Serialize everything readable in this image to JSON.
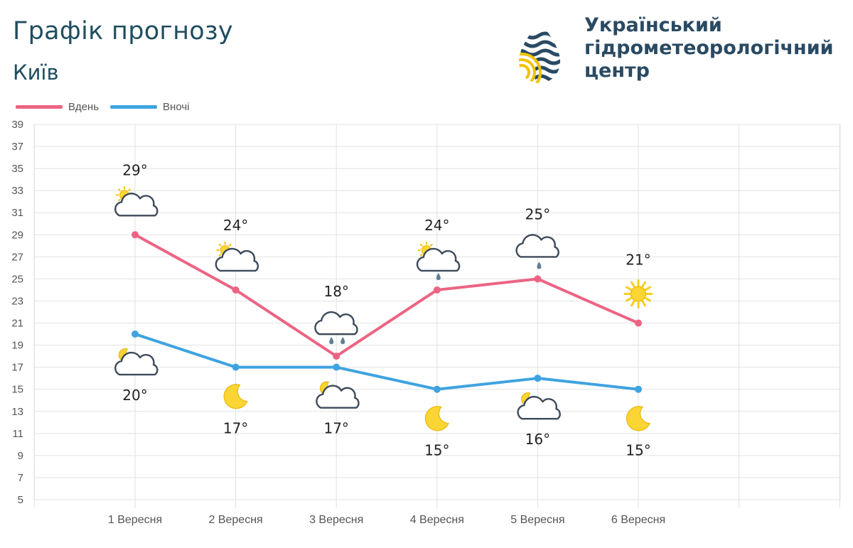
{
  "header": {
    "title": "Графік прогнозу",
    "city": "Київ",
    "org_lines": [
      "Український",
      "гідрометеорологічний",
      "центр"
    ]
  },
  "colors": {
    "day": "#ec6483",
    "night": "#3fa3e0",
    "grid": "#e2e2e2",
    "axis_text": "#555555"
  },
  "chart_data": {
    "type": "line",
    "categories": [
      "1 Вересня",
      "2 Вересня",
      "3 Вересня",
      "4 Вересня",
      "5 Вересня",
      "6 Вересня"
    ],
    "series": [
      {
        "name": "Вдень",
        "values": [
          29,
          24,
          18,
          24,
          25,
          21
        ],
        "labels": [
          "29°",
          "24°",
          "18°",
          "24°",
          "25°",
          "21°"
        ],
        "icons": [
          "partly-cloudy-icon",
          "partly-cloudy-icon",
          "cloudy-rain-icon",
          "partly-cloudy-rain-icon",
          "cloudy-light-rain-icon",
          "sun-icon"
        ]
      },
      {
        "name": "Вночі",
        "values": [
          20,
          17,
          17,
          15,
          16,
          15
        ],
        "labels": [
          "20°",
          "17°",
          "17°",
          "15°",
          "16°",
          "15°"
        ],
        "icons": [
          "cloudy-moon-icon",
          "moon-icon",
          "cloudy-moon-icon",
          "moon-icon",
          "cloudy-moon-icon",
          "moon-icon"
        ]
      }
    ],
    "ylim": [
      5,
      39
    ],
    "yticks": [
      5,
      7,
      9,
      11,
      13,
      15,
      17,
      19,
      21,
      23,
      25,
      27,
      29,
      31,
      33,
      35,
      37,
      39
    ],
    "xlabel": "",
    "ylabel": "",
    "grid": true,
    "legend": "top-left"
  }
}
